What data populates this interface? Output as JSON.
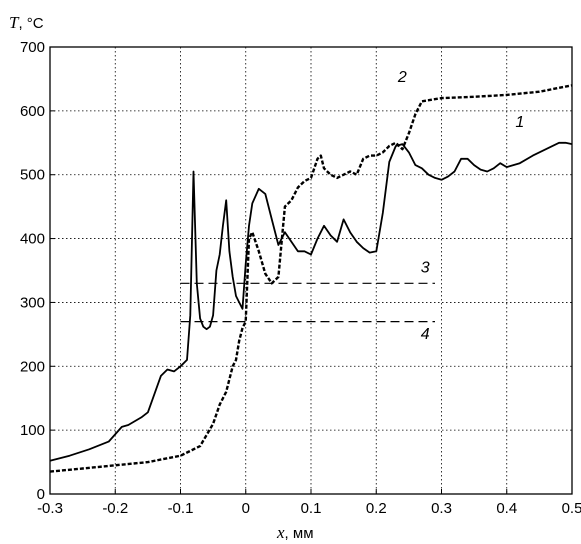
{
  "chart_data": {
    "type": "line",
    "ylabel_symbol": "T",
    "ylabel_unit": ", °C",
    "xlabel_symbol": "x",
    "xlabel_unit": ", мм",
    "xlim": [
      -0.3,
      0.5
    ],
    "ylim": [
      0,
      700
    ],
    "grid": true,
    "x_ticks": [
      "-0.3",
      "-0.2",
      "-0.1",
      "0",
      "0.1",
      "0.2",
      "0.3",
      "0.4",
      "0.5"
    ],
    "y_ticks": [
      "0",
      "100",
      "200",
      "300",
      "400",
      "500",
      "600",
      "700"
    ],
    "series": [
      {
        "name": "1",
        "style": "solid",
        "color": "#000000",
        "x": [
          -0.3,
          -0.27,
          -0.24,
          -0.21,
          -0.19,
          -0.18,
          -0.16,
          -0.15,
          -0.13,
          -0.12,
          -0.11,
          -0.1,
          -0.09,
          -0.085,
          -0.08,
          -0.075,
          -0.07,
          -0.065,
          -0.06,
          -0.055,
          -0.05,
          -0.045,
          -0.04,
          -0.035,
          -0.03,
          -0.025,
          -0.02,
          -0.015,
          -0.01,
          -0.005,
          0.0,
          0.005,
          0.01,
          0.02,
          0.03,
          0.04,
          0.05,
          0.06,
          0.07,
          0.08,
          0.09,
          0.1,
          0.11,
          0.12,
          0.13,
          0.14,
          0.15,
          0.16,
          0.17,
          0.18,
          0.19,
          0.2,
          0.21,
          0.22,
          0.23,
          0.24,
          0.25,
          0.26,
          0.27,
          0.28,
          0.29,
          0.3,
          0.31,
          0.32,
          0.33,
          0.34,
          0.35,
          0.36,
          0.37,
          0.38,
          0.39,
          0.4,
          0.42,
          0.44,
          0.46,
          0.48,
          0.49,
          0.5
        ],
        "values": [
          52,
          60,
          70,
          82,
          105,
          108,
          120,
          128,
          185,
          195,
          192,
          200,
          210,
          280,
          505,
          330,
          275,
          262,
          258,
          262,
          280,
          350,
          375,
          420,
          460,
          380,
          340,
          310,
          300,
          290,
          360,
          420,
          455,
          478,
          470,
          430,
          390,
          410,
          395,
          380,
          380,
          375,
          400,
          420,
          405,
          395,
          430,
          410,
          395,
          385,
          378,
          380,
          440,
          520,
          545,
          548,
          535,
          515,
          510,
          500,
          495,
          492,
          497,
          505,
          525,
          525,
          515,
          508,
          505,
          510,
          518,
          512,
          518,
          530,
          540,
          550,
          550,
          548
        ]
      },
      {
        "name": "2",
        "style": "dashed-dotted",
        "color": "#000000",
        "x": [
          -0.3,
          -0.25,
          -0.2,
          -0.15,
          -0.1,
          -0.07,
          -0.05,
          -0.04,
          -0.03,
          -0.02,
          -0.015,
          -0.01,
          -0.005,
          0.0,
          0.005,
          0.01,
          0.02,
          0.03,
          0.04,
          0.05,
          0.06,
          0.07,
          0.08,
          0.09,
          0.1,
          0.11,
          0.115,
          0.12,
          0.13,
          0.14,
          0.15,
          0.16,
          0.17,
          0.18,
          0.19,
          0.2,
          0.21,
          0.22,
          0.23,
          0.24,
          0.25,
          0.26,
          0.27,
          0.3,
          0.35,
          0.4,
          0.45,
          0.5
        ],
        "values": [
          35,
          40,
          45,
          50,
          60,
          75,
          110,
          140,
          160,
          200,
          210,
          240,
          260,
          270,
          400,
          410,
          380,
          345,
          330,
          340,
          450,
          460,
          480,
          490,
          495,
          525,
          530,
          510,
          500,
          495,
          500,
          505,
          500,
          525,
          530,
          530,
          535,
          545,
          550,
          540,
          565,
          595,
          615,
          620,
          622,
          625,
          630,
          640
        ]
      },
      {
        "name": "3",
        "style": "dashed",
        "color": "#000000",
        "x": [
          -0.1,
          0.29
        ],
        "values": [
          330,
          330
        ]
      },
      {
        "name": "4",
        "style": "dashed",
        "color": "#000000",
        "x": [
          -0.1,
          0.29
        ],
        "values": [
          270,
          270
        ]
      }
    ],
    "curve_labels": [
      {
        "text": "1",
        "x": 0.42,
        "y": 575
      },
      {
        "text": "2",
        "x": 0.24,
        "y": 645
      },
      {
        "text": "3",
        "x": 0.275,
        "y": 347
      },
      {
        "text": "4",
        "x": 0.275,
        "y": 243
      }
    ]
  }
}
